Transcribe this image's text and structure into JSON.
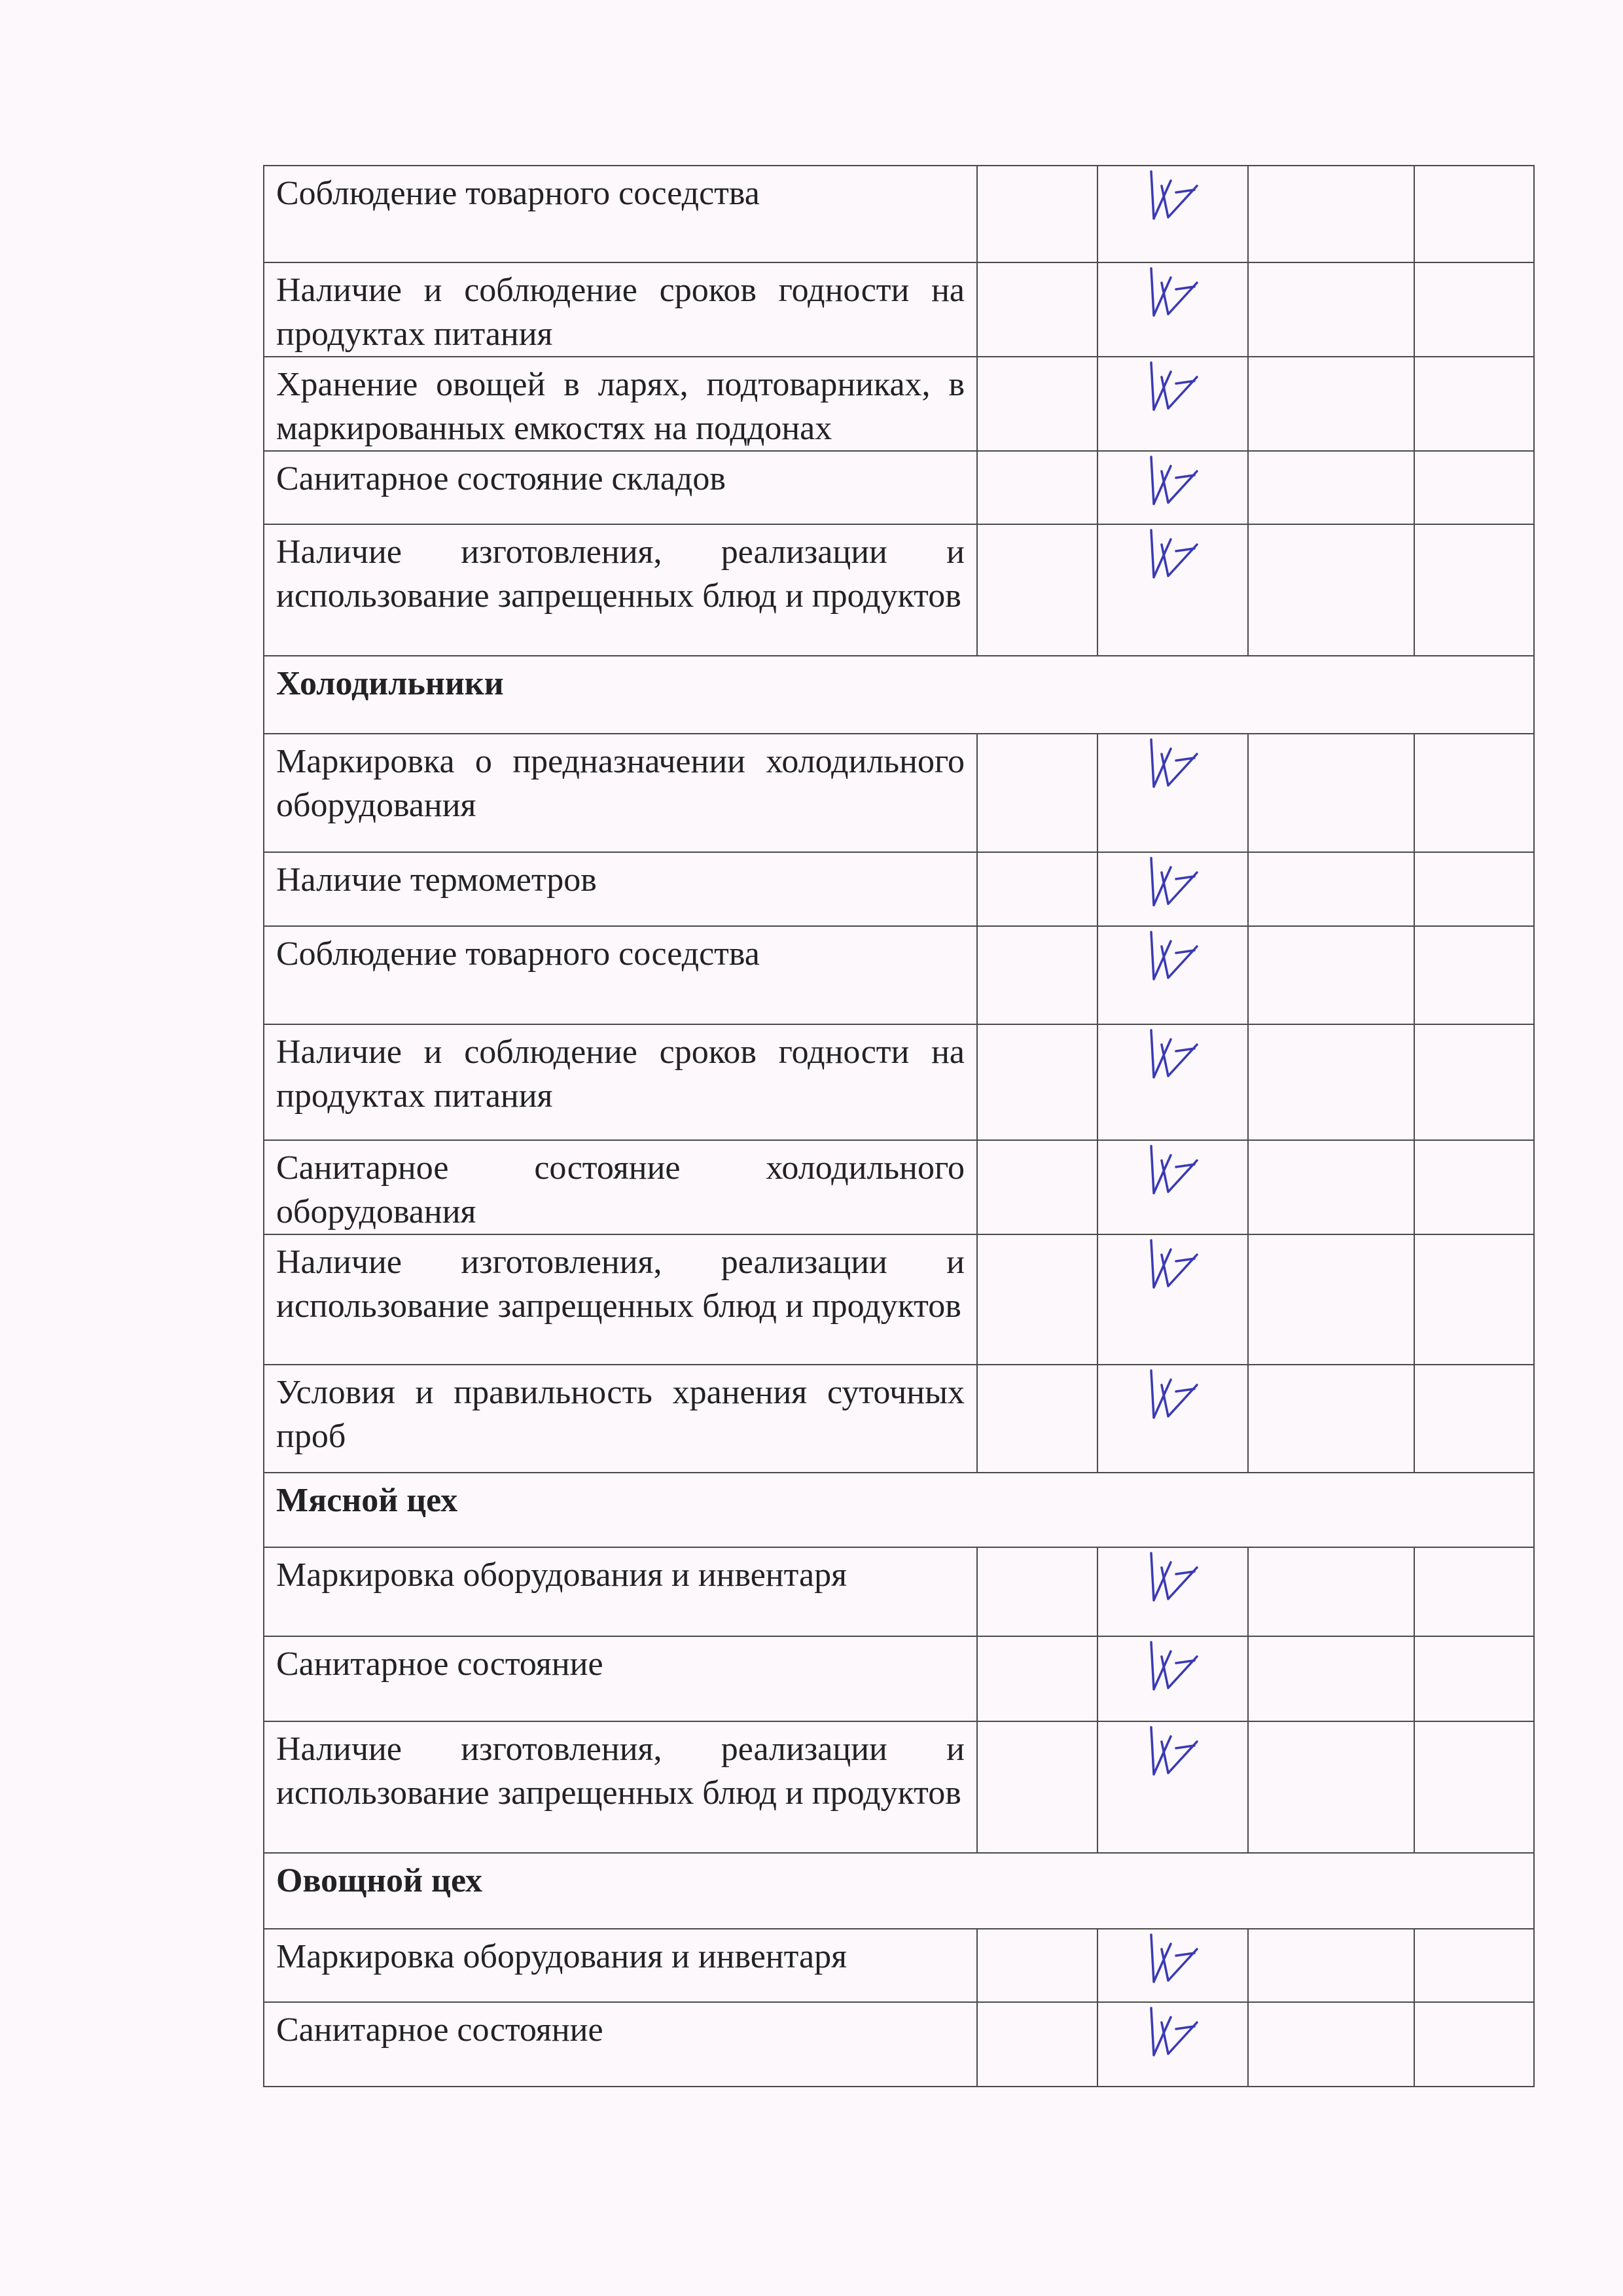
{
  "ink_color": "#3a3ab5",
  "rows": [
    {
      "type": "item",
      "text": "Соблюдение товарного соседства",
      "checked": true
    },
    {
      "type": "item",
      "text": "Наличие и соблюдение сроков годности на продуктах питания",
      "checked": true
    },
    {
      "type": "item",
      "text": "Хранение овощей в ларях, подтоварниках, в маркированных емкостях на поддонах",
      "checked": true
    },
    {
      "type": "item",
      "text": "Санитарное состояние складов",
      "checked": true
    },
    {
      "type": "item",
      "text": "Наличие изготовления, реализации и использование запрещенных блюд и продуктов",
      "checked": true
    },
    {
      "type": "section",
      "text": "Холодильники"
    },
    {
      "type": "item",
      "text": "Маркировка о предназначении холодильного оборудования",
      "checked": true
    },
    {
      "type": "item",
      "text": "Наличие термометров",
      "checked": true
    },
    {
      "type": "item",
      "text": "Соблюдение товарного соседства",
      "checked": true
    },
    {
      "type": "item",
      "text": "Наличие и соблюдение сроков годности на продуктах питания",
      "checked": true
    },
    {
      "type": "item",
      "text": "Санитарное состояние холодильного оборудования",
      "checked": true
    },
    {
      "type": "item",
      "text": "Наличие изготовления, реализации и использование запрещенных блюд и продуктов",
      "checked": true
    },
    {
      "type": "item",
      "text": "Условия и правильность хранения суточных проб",
      "checked": true
    },
    {
      "type": "section",
      "text": "Мясной цех"
    },
    {
      "type": "item",
      "text": "Маркировка оборудования и инвентаря",
      "checked": true
    },
    {
      "type": "item",
      "text": "Санитарное состояние",
      "checked": true
    },
    {
      "type": "item",
      "text": "Наличие изготовления, реализации и использование запрещенных блюд и продуктов",
      "checked": true
    },
    {
      "type": "section",
      "text": "Овощной цех"
    },
    {
      "type": "item",
      "text": "Маркировка оборудования и инвентаря",
      "checked": true
    },
    {
      "type": "item",
      "text": "Санитарное состояние",
      "checked": true
    }
  ]
}
